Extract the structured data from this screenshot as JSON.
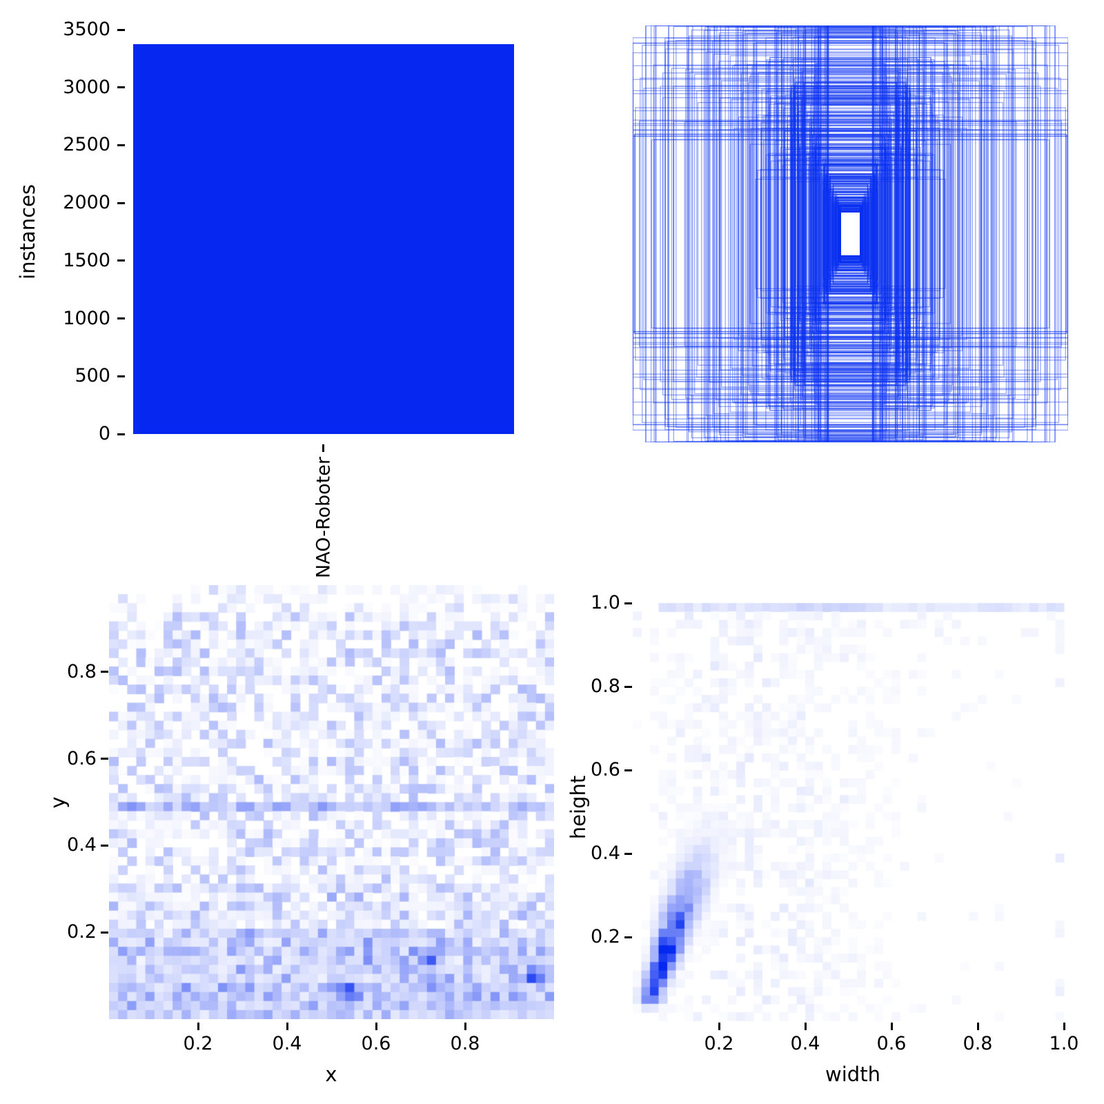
{
  "figure": {
    "background": "#ffffff",
    "description": "Dataset label statistics figure with four panels: class instance counts, overlaid bounding boxes, x/y position heatmap, width/height heatmap"
  },
  "colors": {
    "bar_blue": "#0527f0",
    "box_stroke": "#0a2ff0",
    "heat_max_rgb": [
      4,
      40,
      240
    ],
    "tick_color": "#000000"
  },
  "chart_data": [
    {
      "id": "class-instances-bar",
      "type": "bar",
      "categories": [
        "NAO-Roboter"
      ],
      "values": [
        3375
      ],
      "title": "",
      "xlabel": "",
      "ylabel": "instances",
      "yticks": [
        0,
        500,
        1000,
        1500,
        2000,
        2500,
        3000,
        3500
      ],
      "ylim": [
        0,
        3500
      ],
      "grid": false,
      "legend": null
    },
    {
      "id": "bounding-boxes-overlay",
      "type": "boxes",
      "description": "All bounding boxes drawn as outlines around a common center; sizes follow the width/height distribution, small white gap remains at the exact center",
      "n_drawn": 540,
      "seed": 7,
      "stroke_alpha": 0.42,
      "stroke_width": 1.3,
      "min_box": [
        0.045,
        0.105
      ],
      "components": [
        {
          "name": "small",
          "weight": 0.52,
          "w": [
            0.045,
            0.28
          ],
          "h_ratio": [
            1.7,
            3.1
          ],
          "h_min": 0.105
        },
        {
          "name": "medium",
          "weight": 0.2,
          "w": [
            0.12,
            0.47
          ],
          "h": [
            0.25,
            0.85
          ]
        },
        {
          "name": "full-height",
          "weight": 0.13,
          "w": [
            0.1,
            0.95
          ],
          "h": [
            0.9,
            1.0
          ],
          "p_h_exact_1": 0.6
        },
        {
          "name": "large",
          "weight": 0.15,
          "w": [
            0.45,
            1.0
          ],
          "h": [
            0.45,
            1.0
          ],
          "p_w_exact_1": 0.2
        }
      ]
    },
    {
      "id": "xy-position-heatmap",
      "type": "heatmap",
      "xlabel": "x",
      "ylabel": "y",
      "xticks": [
        0.2,
        0.4,
        0.6,
        0.8
      ],
      "yticks": [
        0.2,
        0.4,
        0.6,
        0.8
      ],
      "xlim": [
        0,
        1
      ],
      "ylim": [
        0,
        1
      ],
      "bins": [
        49,
        48
      ],
      "seed": 11,
      "features": {
        "base_noise": 0.32,
        "white_hole_p": 0.08,
        "top_fade_y": 0.93,
        "bottom_boost_y": 0.32,
        "low_band_y": 0.21,
        "band_y": 0.49,
        "band_strength": 0.2,
        "streak_y": 0.155,
        "hotspots": [
          {
            "x": 0.535,
            "y": 0.065,
            "v": 1.0
          },
          {
            "x": 0.555,
            "y": 0.055,
            "v": 0.6
          },
          {
            "x": 0.72,
            "y": 0.135,
            "v": 0.8
          },
          {
            "x": 0.735,
            "y": 0.15,
            "v": 0.55
          },
          {
            "x": 0.955,
            "y": 0.1,
            "v": 1.0
          },
          {
            "x": 0.475,
            "y": 0.49,
            "v": 0.5
          },
          {
            "x": 0.44,
            "y": 0.16,
            "v": 0.4
          },
          {
            "x": 0.13,
            "y": 0.49,
            "v": 0.4
          },
          {
            "x": 0.87,
            "y": 0.42,
            "v": 0.35
          }
        ]
      }
    },
    {
      "id": "width-height-heatmap",
      "type": "heatmap",
      "xlabel": "width",
      "ylabel": "height",
      "xticks": [
        0.2,
        0.4,
        0.6,
        0.8,
        1.0
      ],
      "yticks": [
        0.2,
        0.4,
        0.6,
        0.8,
        1.0
      ],
      "xlim": [
        0,
        1
      ],
      "ylim": [
        0,
        1
      ],
      "bins": [
        50,
        50
      ],
      "seed": 23,
      "features": {
        "ridge": {
          "from": [
            0.055,
            0.095
          ],
          "to": [
            0.175,
            0.44
          ],
          "sigma": 0.016,
          "sigma_grow": 0.02,
          "peak_at": 0.12,
          "spread": 0.55
        },
        "cloud_strength": 0.1,
        "top_band": {
          "h": 0.99,
          "w_range": [
            0.07,
            1.01
          ],
          "strength": 0.14,
          "strong_w": [
            0.3,
            0.58
          ]
        },
        "right_col_x": 0.98,
        "hotspots": [
          {
            "x": 0.065,
            "y": 0.135,
            "v": 1.0
          },
          {
            "x": 0.05,
            "y": 0.1,
            "v": 0.7
          },
          {
            "x": 0.085,
            "y": 0.17,
            "v": 0.6
          },
          {
            "x": 0.1,
            "y": 0.22,
            "v": 0.5
          },
          {
            "x": 0.12,
            "y": 0.28,
            "v": 0.45
          }
        ]
      }
    }
  ]
}
